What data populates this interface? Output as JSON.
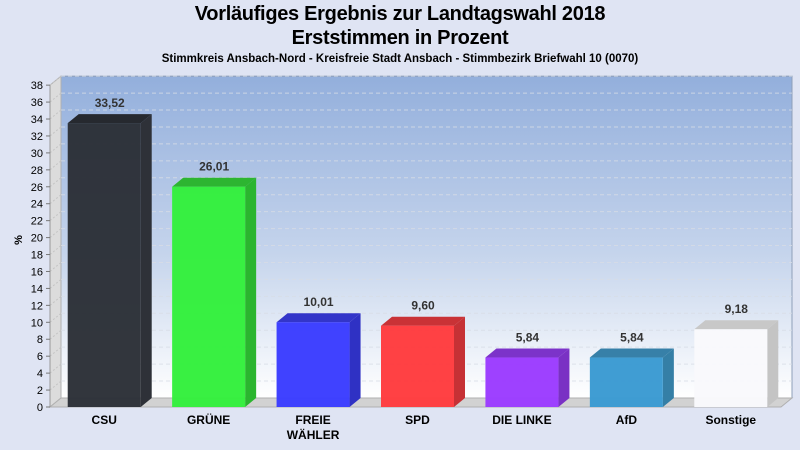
{
  "header": {
    "title": "Vorläufiges Ergebnis zur Landtagswahl 2018",
    "subtitle": "Erststimmen in Prozent",
    "detail": "Stimmkreis Ansbach-Nord - Kreisfreie Stadt Ansbach - Stimmbezirk Briefwahl 10 (0070)"
  },
  "chart_data": {
    "type": "bar",
    "title": "Vorläufiges Ergebnis zur Landtagswahl 2018",
    "subtitle": "Erststimmen in Prozent",
    "xlabel": "",
    "ylabel": "%",
    "ylim": [
      0,
      38
    ],
    "yticks": [
      0,
      2,
      4,
      6,
      8,
      10,
      12,
      14,
      16,
      18,
      20,
      22,
      24,
      26,
      28,
      30,
      32,
      34,
      36,
      38
    ],
    "grid": true,
    "categories": [
      "CSU",
      "GRÜNE",
      "FREIE WÄHLER",
      "SPD",
      "DIE LINKE",
      "AfD",
      "Sonstige"
    ],
    "category_lines": [
      [
        "CSU"
      ],
      [
        "GRÜNE"
      ],
      [
        "FREIE",
        "WÄHLER"
      ],
      [
        "SPD"
      ],
      [
        "DIE LINKE"
      ],
      [
        "AfD"
      ],
      [
        "Sonstige"
      ]
    ],
    "values": [
      33.52,
      26.01,
      10.01,
      9.6,
      5.84,
      5.84,
      9.18
    ],
    "value_labels": [
      "33,52",
      "26,01",
      "10,01",
      "9,60",
      "5,84",
      "5,84",
      "9,18"
    ],
    "colors": [
      "#2b2f37",
      "#33f03c",
      "#3a3cff",
      "#ff3b3e",
      "#9b3bff",
      "#3a9ad2",
      "#f9f9fc"
    ],
    "side_colors": [
      "#2e3138",
      "#2bb52f",
      "#2f31c4",
      "#c63135",
      "#7a31c4",
      "#357fa6",
      "#c4c4c4"
    ],
    "top_colors": [
      "#26292f",
      "#2db531",
      "#3335c9",
      "#c93236",
      "#7c33c9",
      "#3780a8",
      "#c8c8c8"
    ]
  }
}
